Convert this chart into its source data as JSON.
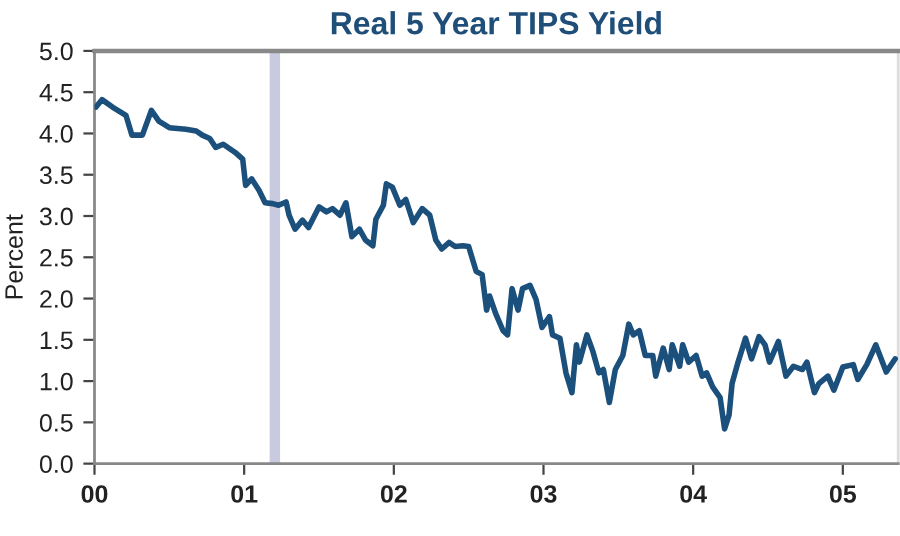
{
  "chart_data": {
    "type": "line",
    "title": "Real 5 Year TIPS Yield",
    "ylabel": "Percent",
    "series": [
      {
        "color": "#1b4f7c",
        "x": [
          0.01,
          0.05,
          0.12,
          0.21,
          0.25,
          0.32,
          0.38,
          0.43,
          0.5,
          0.61,
          0.68,
          0.72,
          0.77,
          0.81,
          0.86,
          0.94,
          0.99,
          1.01,
          1.05,
          1.1,
          1.14,
          1.19,
          1.23,
          1.28,
          1.3,
          1.34,
          1.39,
          1.43,
          1.5,
          1.55,
          1.59,
          1.64,
          1.68,
          1.72,
          1.77,
          1.81,
          1.86,
          1.88,
          1.93,
          1.95,
          1.99,
          2.04,
          2.08,
          2.13,
          2.19,
          2.24,
          2.28,
          2.32,
          2.37,
          2.41,
          2.46,
          2.5,
          2.55,
          2.59,
          2.62,
          2.64,
          2.68,
          2.73,
          2.76,
          2.79,
          2.83,
          2.86,
          2.91,
          2.95,
          2.99,
          3.04,
          3.06,
          3.11,
          3.15,
          3.19,
          3.22,
          3.24,
          3.29,
          3.33,
          3.37,
          3.4,
          3.44,
          3.48,
          3.53,
          3.57,
          3.6,
          3.64,
          3.68,
          3.73,
          3.75,
          3.8,
          3.84,
          3.86,
          3.91,
          3.93,
          3.97,
          4.02,
          4.06,
          4.09,
          4.13,
          4.18,
          4.21,
          4.24,
          4.26,
          4.3,
          4.35,
          4.39,
          4.44,
          4.48,
          4.51,
          4.57,
          4.62,
          4.67,
          4.73,
          4.76,
          4.81,
          4.84,
          4.9,
          4.94,
          5.0,
          5.07,
          5.1,
          5.16,
          5.22,
          5.29,
          5.35
        ],
        "values": [
          4.32,
          4.41,
          4.32,
          4.22,
          3.98,
          3.98,
          4.28,
          4.15,
          4.07,
          4.05,
          4.03,
          3.98,
          3.94,
          3.83,
          3.87,
          3.77,
          3.69,
          3.37,
          3.45,
          3.31,
          3.16,
          3.15,
          3.13,
          3.17,
          3.01,
          2.84,
          2.95,
          2.86,
          3.11,
          3.05,
          3.09,
          3.01,
          3.16,
          2.75,
          2.84,
          2.71,
          2.64,
          2.96,
          3.13,
          3.39,
          3.35,
          3.13,
          3.2,
          2.92,
          3.09,
          3.01,
          2.71,
          2.6,
          2.68,
          2.63,
          2.64,
          2.63,
          2.33,
          2.29,
          1.86,
          2.03,
          1.82,
          1.61,
          1.56,
          2.12,
          1.86,
          2.12,
          2.16,
          1.99,
          1.65,
          1.78,
          1.56,
          1.52,
          1.1,
          0.86,
          1.44,
          1.23,
          1.56,
          1.36,
          1.1,
          1.14,
          0.74,
          1.14,
          1.31,
          1.69,
          1.56,
          1.61,
          1.31,
          1.31,
          1.06,
          1.4,
          1.14,
          1.44,
          1.18,
          1.44,
          1.23,
          1.31,
          1.06,
          1.1,
          0.93,
          0.8,
          0.42,
          0.59,
          0.97,
          1.23,
          1.52,
          1.27,
          1.54,
          1.44,
          1.23,
          1.48,
          1.06,
          1.18,
          1.14,
          1.23,
          0.86,
          0.97,
          1.06,
          0.89,
          1.17,
          1.2,
          1.02,
          1.2,
          1.44,
          1.11,
          1.27
        ]
      }
    ],
    "xlim": [
      0,
      5.37
    ],
    "xticks": [
      {
        "value": 0,
        "label": "00"
      },
      {
        "value": 1,
        "label": "01"
      },
      {
        "value": 2,
        "label": "02"
      },
      {
        "value": 3,
        "label": "03"
      },
      {
        "value": 4,
        "label": "04"
      },
      {
        "value": 5,
        "label": "05"
      }
    ],
    "ylim": [
      0,
      5
    ],
    "yticks": [
      {
        "value": 0,
        "label": "0.0"
      },
      {
        "value": 0.5,
        "label": "0.5"
      },
      {
        "value": 1,
        "label": "1.0"
      },
      {
        "value": 1.5,
        "label": "1.5"
      },
      {
        "value": 2,
        "label": "2.0"
      },
      {
        "value": 2.5,
        "label": "2.5"
      },
      {
        "value": 3,
        "label": "3.0"
      },
      {
        "value": 3.5,
        "label": "3.5"
      },
      {
        "value": 4,
        "label": "4.0"
      },
      {
        "value": 4.5,
        "label": "4.5"
      },
      {
        "value": 5,
        "label": "5.0"
      }
    ],
    "bands": [
      {
        "axis": "x",
        "from": 1.17,
        "to": 1.24,
        "color": "#c8cbe0"
      }
    ],
    "grid": false,
    "legend": false
  }
}
